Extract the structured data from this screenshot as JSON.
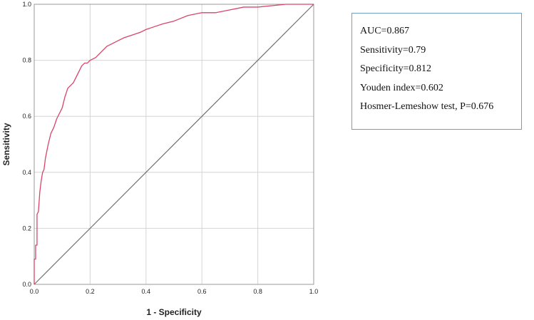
{
  "chart_data": {
    "type": "line",
    "title": "",
    "xlabel": "1 - Specificity",
    "ylabel": "Sensitivity",
    "xlim": [
      0,
      1
    ],
    "ylim": [
      0,
      1
    ],
    "x_ticks": [
      "0.0",
      "0.2",
      "0.4",
      "0.6",
      "0.8",
      "1.0"
    ],
    "y_ticks": [
      "0.0",
      "0.2",
      "0.4",
      "0.6",
      "0.8",
      "1.0"
    ],
    "grid": true,
    "series": [
      {
        "color": "#d9446a",
        "x": [
          0,
          0,
          0.005,
          0.005,
          0.01,
          0.01,
          0.015,
          0.02,
          0.025,
          0.03,
          0.035,
          0.04,
          0.05,
          0.06,
          0.07,
          0.08,
          0.09,
          0.1,
          0.11,
          0.12,
          0.13,
          0.14,
          0.15,
          0.16,
          0.17,
          0.18,
          0.19,
          0.2,
          0.22,
          0.24,
          0.26,
          0.28,
          0.3,
          0.32,
          0.35,
          0.38,
          0.4,
          0.43,
          0.46,
          0.5,
          0.55,
          0.6,
          0.65,
          0.7,
          0.75,
          0.8,
          0.85,
          0.9,
          0.95,
          1.0
        ],
        "y": [
          0,
          0.09,
          0.09,
          0.14,
          0.14,
          0.25,
          0.26,
          0.33,
          0.37,
          0.4,
          0.41,
          0.45,
          0.5,
          0.54,
          0.56,
          0.59,
          0.61,
          0.63,
          0.67,
          0.7,
          0.71,
          0.72,
          0.74,
          0.76,
          0.78,
          0.79,
          0.79,
          0.8,
          0.81,
          0.83,
          0.85,
          0.86,
          0.87,
          0.88,
          0.89,
          0.9,
          0.91,
          0.92,
          0.93,
          0.94,
          0.96,
          0.97,
          0.97,
          0.98,
          0.99,
          0.99,
          0.995,
          1.0,
          1.0,
          1.0
        ]
      },
      {
        "color": "#707070",
        "x": [
          0,
          1
        ],
        "y": [
          0,
          1
        ]
      }
    ]
  },
  "stats": [
    "AUC=0.867",
    "Sensitivity=0.79",
    "Specificity=0.812",
    "Youden index=0.602",
    "Hosmer-Lemeshow test, P=0.676"
  ]
}
